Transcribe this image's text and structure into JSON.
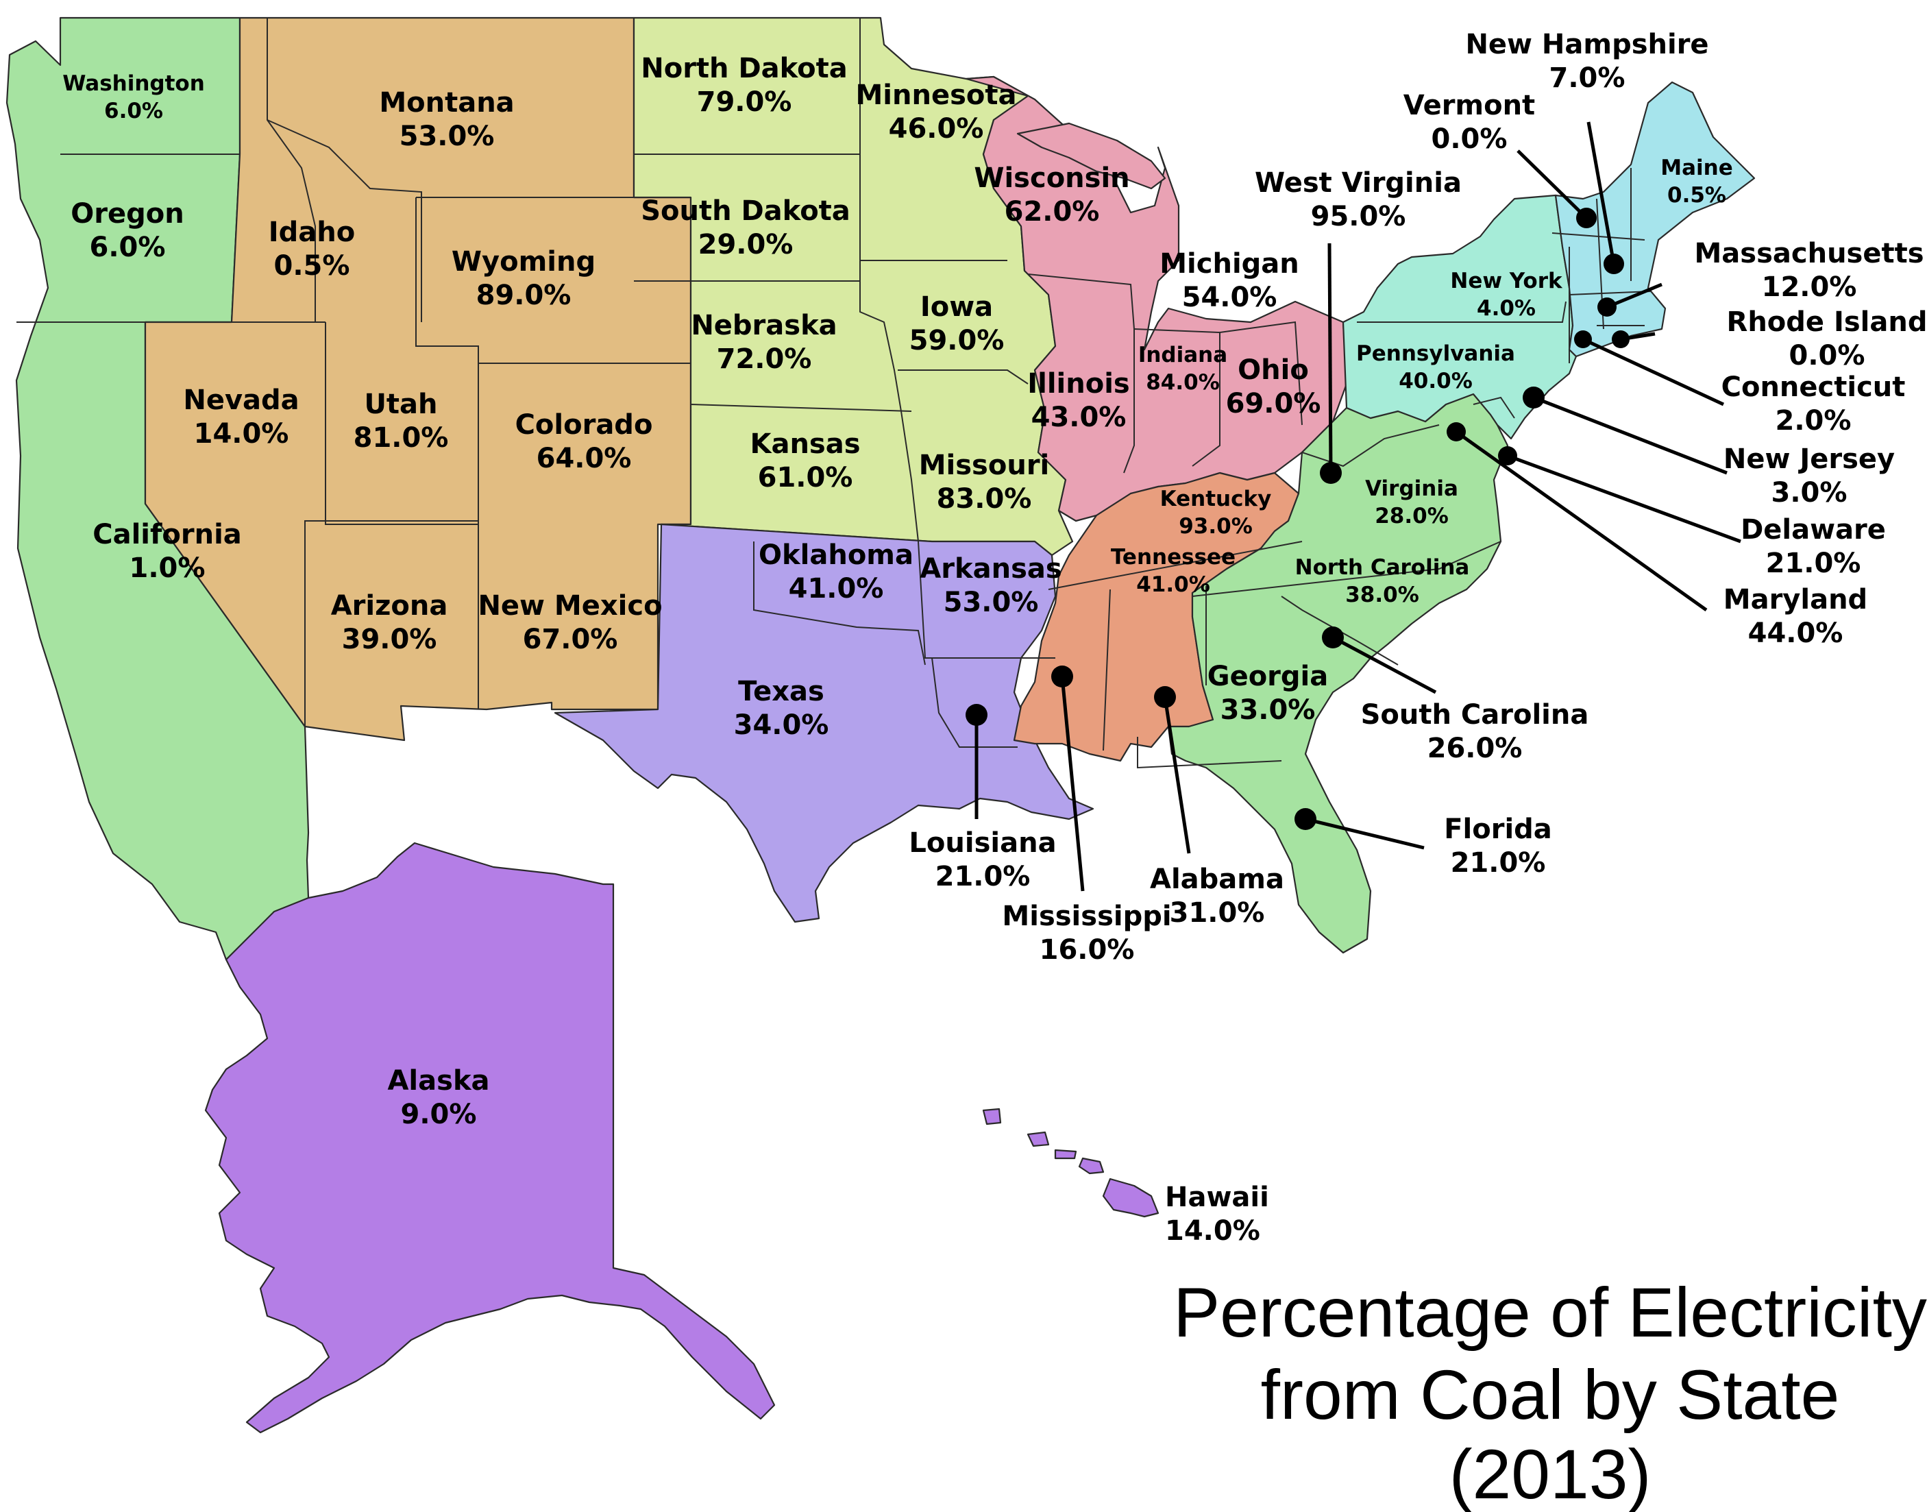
{
  "title": {
    "line1": "Percentage of Electricity",
    "line2": "from Coal by State",
    "line3": "(2013)"
  },
  "colors": {
    "west_coast": "#a6e3a1",
    "mountain": "#e2bd82",
    "plains": "#d8eaa2",
    "great_lakes": "#e9a2b4",
    "south_central": "#b3a2ec",
    "east_south_central": "#e89e7e",
    "south_atlantic": "#a6e3a1",
    "mid_atlantic": "#a6ecd8",
    "new_england": "#a6e4ec",
    "alaska_hawaii": "#b47ee6",
    "border": "#2a2a2a"
  },
  "states": [
    {
      "key": "washington",
      "name": "Washington",
      "value": "6.0%"
    },
    {
      "key": "oregon",
      "name": "Oregon",
      "value": "6.0%"
    },
    {
      "key": "california",
      "name": "California",
      "value": "1.0%"
    },
    {
      "key": "idaho",
      "name": "Idaho",
      "value": "0.5%"
    },
    {
      "key": "montana",
      "name": "Montana",
      "value": "53.0%"
    },
    {
      "key": "wyoming",
      "name": "Wyoming",
      "value": "89.0%"
    },
    {
      "key": "nevada",
      "name": "Nevada",
      "value": "14.0%"
    },
    {
      "key": "utah",
      "name": "Utah",
      "value": "81.0%"
    },
    {
      "key": "colorado",
      "name": "Colorado",
      "value": "64.0%"
    },
    {
      "key": "arizona",
      "name": "Arizona",
      "value": "39.0%"
    },
    {
      "key": "new_mexico",
      "name": "New Mexico",
      "value": "67.0%"
    },
    {
      "key": "north_dakota",
      "name": "North Dakota",
      "value": "79.0%"
    },
    {
      "key": "south_dakota",
      "name": "South Dakota",
      "value": "29.0%"
    },
    {
      "key": "nebraska",
      "name": "Nebraska",
      "value": "72.0%"
    },
    {
      "key": "kansas",
      "name": "Kansas",
      "value": "61.0%"
    },
    {
      "key": "minnesota",
      "name": "Minnesota",
      "value": "46.0%"
    },
    {
      "key": "iowa",
      "name": "Iowa",
      "value": "59.0%"
    },
    {
      "key": "missouri",
      "name": "Missouri",
      "value": "83.0%"
    },
    {
      "key": "wisconsin",
      "name": "Wisconsin",
      "value": "62.0%"
    },
    {
      "key": "michigan",
      "name": "Michigan",
      "value": "54.0%"
    },
    {
      "key": "illinois",
      "name": "Illinois",
      "value": "43.0%"
    },
    {
      "key": "indiana",
      "name": "Indiana",
      "value": "84.0%"
    },
    {
      "key": "ohio",
      "name": "Ohio",
      "value": "69.0%"
    },
    {
      "key": "oklahoma",
      "name": "Oklahoma",
      "value": "41.0%"
    },
    {
      "key": "texas",
      "name": "Texas",
      "value": "34.0%"
    },
    {
      "key": "arkansas",
      "name": "Arkansas",
      "value": "53.0%"
    },
    {
      "key": "louisiana",
      "name": "Louisiana",
      "value": "21.0%"
    },
    {
      "key": "kentucky",
      "name": "Kentucky",
      "value": "93.0%"
    },
    {
      "key": "tennessee",
      "name": "Tennessee",
      "value": "41.0%"
    },
    {
      "key": "mississippi",
      "name": "Mississippi",
      "value": "16.0%"
    },
    {
      "key": "alabama",
      "name": "Alabama",
      "value": "31.0%"
    },
    {
      "key": "west_virginia",
      "name": "West Virginia",
      "value": "95.0%"
    },
    {
      "key": "virginia",
      "name": "Virginia",
      "value": "28.0%"
    },
    {
      "key": "north_carolina",
      "name": "North Carolina",
      "value": "38.0%"
    },
    {
      "key": "south_carolina",
      "name": "South Carolina",
      "value": "26.0%"
    },
    {
      "key": "georgia",
      "name": "Georgia",
      "value": "33.0%"
    },
    {
      "key": "florida",
      "name": "Florida",
      "value": "21.0%"
    },
    {
      "key": "pennsylvania",
      "name": "Pennsylvania",
      "value": "40.0%"
    },
    {
      "key": "new_york",
      "name": "New York",
      "value": "4.0%"
    },
    {
      "key": "new_jersey",
      "name": "New Jersey",
      "value": "3.0%"
    },
    {
      "key": "delaware",
      "name": "Delaware",
      "value": "21.0%"
    },
    {
      "key": "maryland",
      "name": "Maryland",
      "value": "44.0%"
    },
    {
      "key": "vermont",
      "name": "Vermont",
      "value": "0.0%"
    },
    {
      "key": "new_hampshire",
      "name": "New Hampshire",
      "value": "7.0%"
    },
    {
      "key": "maine",
      "name": "Maine",
      "value": "0.5%"
    },
    {
      "key": "massachusetts",
      "name": "Massachusetts",
      "value": "12.0%"
    },
    {
      "key": "rhode_island",
      "name": "Rhode Island",
      "value": "0.0%"
    },
    {
      "key": "connecticut",
      "name": "Connecticut",
      "value": "2.0%"
    },
    {
      "key": "alaska",
      "name": "Alaska",
      "value": "9.0%"
    },
    {
      "key": "hawaii",
      "name": "Hawaii",
      "value": "14.0%"
    }
  ]
}
